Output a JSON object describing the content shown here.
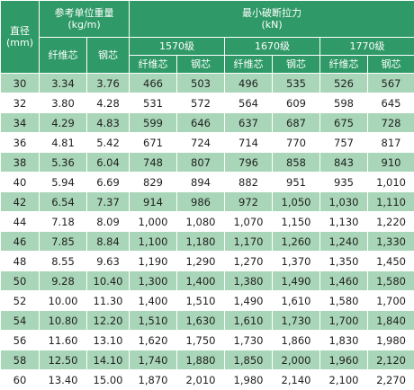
{
  "header": {
    "diameter": {
      "label": "直径",
      "unit": "(mm)"
    },
    "weight": {
      "label": "参考单位重量",
      "unit": "(kg/m)"
    },
    "force": {
      "label": "最小破断拉力",
      "unit": "(kN)"
    },
    "grades": [
      "1570级",
      "1670级",
      "1770级"
    ],
    "core_types": [
      "纤维芯",
      "钢芯"
    ]
  },
  "table": {
    "rows": [
      [
        "30",
        "3.34",
        "3.76",
        "466",
        "503",
        "496",
        "535",
        "526",
        "567"
      ],
      [
        "32",
        "3.80",
        "4.28",
        "531",
        "572",
        "564",
        "609",
        "598",
        "645"
      ],
      [
        "34",
        "4.29",
        "4.83",
        "599",
        "646",
        "637",
        "687",
        "675",
        "728"
      ],
      [
        "36",
        "4.81",
        "5.42",
        "671",
        "724",
        "714",
        "770",
        "757",
        "817"
      ],
      [
        "38",
        "5.36",
        "6.04",
        "748",
        "807",
        "796",
        "858",
        "843",
        "910"
      ],
      [
        "40",
        "5.94",
        "6.69",
        "829",
        "894",
        "882",
        "951",
        "935",
        "1,010"
      ],
      [
        "42",
        "6.54",
        "7.37",
        "914",
        "986",
        "972",
        "1,050",
        "1,030",
        "1,110"
      ],
      [
        "44",
        "7.18",
        "8.09",
        "1,000",
        "1,080",
        "1,070",
        "1,150",
        "1,130",
        "1,220"
      ],
      [
        "46",
        "7.85",
        "8.84",
        "1,100",
        "1,180",
        "1,170",
        "1,260",
        "1,240",
        "1,330"
      ],
      [
        "48",
        "8.55",
        "9.63",
        "1,190",
        "1,290",
        "1,270",
        "1,370",
        "1,350",
        "1,450"
      ],
      [
        "50",
        "9.28",
        "10.40",
        "1,300",
        "1,400",
        "1,380",
        "1,490",
        "1,460",
        "1,580"
      ],
      [
        "52",
        "10.00",
        "11.30",
        "1,400",
        "1,510",
        "1,490",
        "1,610",
        "1,580",
        "1,700"
      ],
      [
        "54",
        "10.80",
        "12.20",
        "1,510",
        "1,630",
        "1,610",
        "1,730",
        "1,700",
        "1,840"
      ],
      [
        "56",
        "11.60",
        "13.10",
        "1,620",
        "1,750",
        "1,730",
        "1,860",
        "1,830",
        "1,980"
      ],
      [
        "58",
        "12.50",
        "14.10",
        "1,740",
        "1,880",
        "1,850",
        "2,000",
        "1,960",
        "2,120"
      ],
      [
        "60",
        "13.40",
        "15.00",
        "1,870",
        "2,010",
        "1,980",
        "2,140",
        "2,100",
        "2,270"
      ]
    ]
  }
}
